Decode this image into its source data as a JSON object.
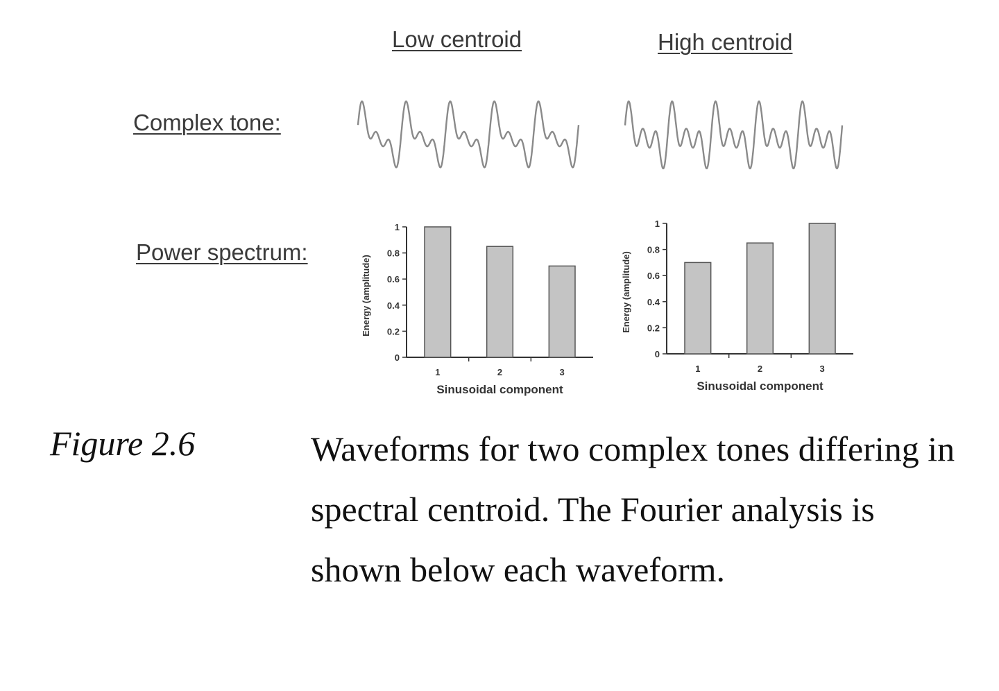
{
  "figure": {
    "columns": {
      "low": "Low centroid",
      "high": "High centroid"
    },
    "rows": {
      "waveform": "Complex tone:",
      "spectrum": "Power spectrum:"
    },
    "caption": {
      "label": "Figure 2.6",
      "text": "Waveforms for two complex tones differing in spectral centroid. The Fourier analysis is shown below each waveform."
    },
    "colors": {
      "bar_fill": "#c4c4c4",
      "bar_stroke": "#555555",
      "wave_stroke": "#8a8a8a",
      "axis": "#333333"
    }
  },
  "chart_data": [
    {
      "type": "bar",
      "column": "Low centroid",
      "categories": [
        "1",
        "2",
        "3"
      ],
      "values": [
        1.0,
        0.85,
        0.7
      ],
      "xlabel": "Sinusoidal component",
      "ylabel": "Energy (amplitude)",
      "ylim": [
        0,
        1
      ],
      "yticks": [
        "0",
        "0.2",
        "0.4",
        "0.6",
        "0.8",
        "1"
      ],
      "grid": false
    },
    {
      "type": "bar",
      "column": "High centroid",
      "categories": [
        "1",
        "2",
        "3"
      ],
      "values": [
        0.7,
        0.85,
        1.0
      ],
      "xlabel": "Sinusoidal component",
      "ylabel": "Energy (amplitude)",
      "ylim": [
        0,
        1
      ],
      "yticks": [
        "0",
        "0.2",
        "0.4",
        "0.6",
        "0.8",
        "1"
      ],
      "grid": false
    }
  ]
}
